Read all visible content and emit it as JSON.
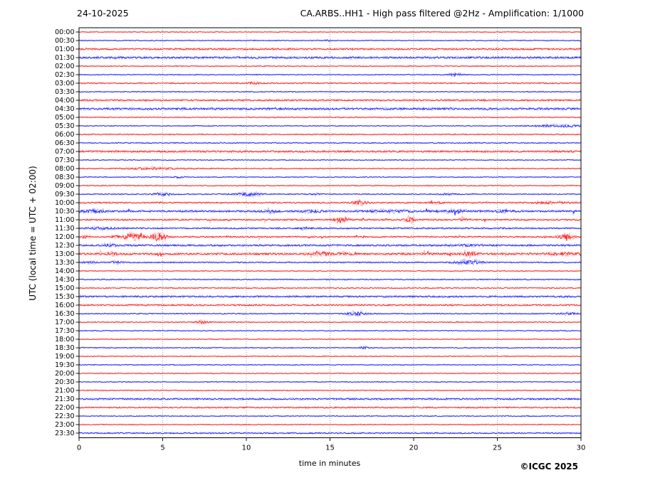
{
  "header": {
    "date": "24-10-2025",
    "title": "CA.ARBS..HH1 - High pass filtered @2Hz - Amplification: 1/1000"
  },
  "axes": {
    "xlabel": "time in minutes",
    "ylabel": "UTC (local time = UTC + 02:00)"
  },
  "footer": {
    "credit": "©ICGC 2025"
  },
  "chart_data": {
    "type": "line",
    "subtype": "helicorder-seismogram",
    "title": "CA.ARBS..HH1 - High pass filtered @2Hz - Amplification: 1/1000",
    "date_label": "24-10-2025",
    "xlabel": "time in minutes",
    "ylabel": "UTC (local time = UTC + 02:00)",
    "xlim": [
      0,
      30
    ],
    "xticks": [
      0,
      5,
      10,
      15,
      20,
      25,
      30
    ],
    "grid": "vertical dashed gridlines at 5-minute intervals",
    "legend": "none",
    "colors": {
      "trace_red": "#ff0000",
      "trace_red_soft": "#ffb6b6",
      "trace_blue": "#0000ff",
      "trace_blue_soft": "#b6b6ff",
      "axis": "#000000",
      "grid": "#8c8c8c"
    },
    "rows": [
      {
        "time": "00:00",
        "color": "red",
        "base": 0.45,
        "bursts": []
      },
      {
        "time": "00:30",
        "color": "blue",
        "base": 0.5,
        "bursts": [
          {
            "c": 14.9,
            "w": 0.25,
            "a": 0.8
          }
        ]
      },
      {
        "time": "01:00",
        "color": "red",
        "base": 1.05,
        "bursts": []
      },
      {
        "time": "01:30",
        "color": "blue",
        "base": 1.15,
        "bursts": []
      },
      {
        "time": "02:00",
        "color": "red",
        "base": 0.55,
        "bursts": []
      },
      {
        "time": "02:30",
        "color": "blue",
        "base": 0.5,
        "bursts": [
          {
            "c": 22.5,
            "w": 0.4,
            "a": 1.6
          }
        ]
      },
      {
        "time": "03:00",
        "color": "red",
        "base": 0.7,
        "bursts": [
          {
            "c": 10.5,
            "w": 0.35,
            "a": 1.3
          }
        ]
      },
      {
        "time": "03:30",
        "color": "blue",
        "base": 0.55,
        "bursts": []
      },
      {
        "time": "04:00",
        "color": "red",
        "base": 1.0,
        "bursts": []
      },
      {
        "time": "04:30",
        "color": "blue",
        "base": 1.25,
        "bursts": []
      },
      {
        "time": "05:00",
        "color": "red",
        "base": 0.55,
        "bursts": []
      },
      {
        "time": "05:30",
        "color": "blue",
        "base": 0.5,
        "bursts": [
          {
            "c": 28.6,
            "w": 1.6,
            "a": 1.3
          }
        ]
      },
      {
        "time": "06:00",
        "color": "red",
        "base": 0.6,
        "bursts": []
      },
      {
        "time": "06:30",
        "color": "blue",
        "base": 0.6,
        "bursts": []
      },
      {
        "time": "07:00",
        "color": "red",
        "base": 1.1,
        "bursts": []
      },
      {
        "time": "07:30",
        "color": "blue",
        "base": 0.5,
        "bursts": []
      },
      {
        "time": "08:00",
        "color": "red",
        "base": 0.6,
        "bursts": [
          {
            "c": 4.5,
            "w": 1.8,
            "a": 1.0
          }
        ]
      },
      {
        "time": "08:30",
        "color": "blue",
        "base": 0.5,
        "bursts": [
          {
            "c": 6.0,
            "w": 0.3,
            "a": 0.9
          }
        ]
      },
      {
        "time": "09:00",
        "color": "red",
        "base": 0.55,
        "bursts": []
      },
      {
        "time": "09:30",
        "color": "blue",
        "base": 0.6,
        "bursts": [
          {
            "c": 5.0,
            "w": 0.6,
            "a": 1.6
          },
          {
            "c": 10.1,
            "w": 0.7,
            "a": 2.0
          },
          {
            "c": 14.2,
            "w": 0.3,
            "a": 0.9
          },
          {
            "c": 22.0,
            "w": 0.5,
            "a": 0.8
          }
        ]
      },
      {
        "time": "10:00",
        "color": "red",
        "base": 0.8,
        "spiky": true,
        "bursts": [
          {
            "c": 16.8,
            "w": 0.45,
            "a": 2.2
          },
          {
            "c": 21.3,
            "w": 0.5,
            "a": 0.9
          },
          {
            "c": 28.3,
            "w": 1.2,
            "a": 0.9
          }
        ]
      },
      {
        "time": "10:30",
        "color": "blue",
        "base": 1.1,
        "spiky": true,
        "bursts": [
          {
            "c": 0.8,
            "w": 0.9,
            "a": 1.4
          },
          {
            "c": 11.5,
            "w": 0.5,
            "a": 1.0
          },
          {
            "c": 13.8,
            "w": 0.6,
            "a": 1.2
          },
          {
            "c": 18.5,
            "w": 1.4,
            "a": 1.0
          },
          {
            "c": 22.3,
            "w": 1.1,
            "a": 1.0
          },
          {
            "c": 25.4,
            "w": 0.5,
            "a": 1.2
          }
        ]
      },
      {
        "time": "11:00",
        "color": "red",
        "base": 0.9,
        "spiky": true,
        "bursts": [
          {
            "c": 15.5,
            "w": 0.3,
            "a": 2.6
          },
          {
            "c": 15.95,
            "w": 0.2,
            "a": 2.0
          },
          {
            "c": 19.8,
            "w": 0.3,
            "a": 3.0
          },
          {
            "c": 23.0,
            "w": 0.3,
            "a": 1.0
          }
        ]
      },
      {
        "time": "11:30",
        "color": "blue",
        "base": 0.85,
        "bursts": [
          {
            "c": 1.5,
            "w": 0.9,
            "a": 1.0
          },
          {
            "c": 13.5,
            "w": 0.4,
            "a": 1.0
          }
        ]
      },
      {
        "time": "12:00",
        "color": "red",
        "base": 0.85,
        "spiky": true,
        "bursts": [
          {
            "c": 0.4,
            "w": 0.2,
            "a": 1.5
          },
          {
            "c": 2.2,
            "w": 0.25,
            "a": 1.2
          },
          {
            "c": 3.2,
            "w": 0.55,
            "a": 4.2
          },
          {
            "c": 4.7,
            "w": 0.5,
            "a": 4.6
          },
          {
            "c": 29.1,
            "w": 0.5,
            "a": 2.8
          }
        ]
      },
      {
        "time": "12:30",
        "color": "blue",
        "base": 1.05,
        "bursts": [
          {
            "c": 1.8,
            "w": 0.4,
            "a": 1.3
          },
          {
            "c": 23.0,
            "w": 0.8,
            "a": 0.9
          }
        ]
      },
      {
        "time": "13:00",
        "color": "red",
        "base": 1.25,
        "spiky": true,
        "bursts": [
          {
            "c": 2.0,
            "w": 0.3,
            "a": 1.5
          },
          {
            "c": 14.5,
            "w": 0.6,
            "a": 1.6
          },
          {
            "c": 15.8,
            "w": 0.3,
            "a": 1.5
          },
          {
            "c": 23.4,
            "w": 0.4,
            "a": 1.8
          },
          {
            "c": 29.0,
            "w": 0.9,
            "a": 1.1
          }
        ]
      },
      {
        "time": "13:30",
        "color": "blue",
        "base": 0.7,
        "bursts": [
          {
            "c": 0.5,
            "w": 0.5,
            "a": 1.0
          },
          {
            "c": 2.2,
            "w": 0.35,
            "a": 1.5
          },
          {
            "c": 23.3,
            "w": 0.8,
            "a": 2.2
          }
        ]
      },
      {
        "time": "14:00",
        "color": "red",
        "base": 0.5,
        "bursts": []
      },
      {
        "time": "14:30",
        "color": "blue",
        "base": 0.6,
        "bursts": []
      },
      {
        "time": "15:00",
        "color": "red",
        "base": 0.65,
        "bursts": []
      },
      {
        "time": "15:30",
        "color": "blue",
        "base": 1.0,
        "bursts": []
      },
      {
        "time": "16:00",
        "color": "red",
        "base": 0.9,
        "bursts": []
      },
      {
        "time": "16:30",
        "color": "blue",
        "base": 0.6,
        "bursts": [
          {
            "c": 16.6,
            "w": 0.6,
            "a": 2.0
          },
          {
            "c": 29.3,
            "w": 0.5,
            "a": 1.1
          }
        ]
      },
      {
        "time": "17:00",
        "color": "red",
        "base": 0.6,
        "bursts": [
          {
            "c": 7.3,
            "w": 0.35,
            "a": 1.7
          }
        ]
      },
      {
        "time": "17:30",
        "color": "blue",
        "base": 0.5,
        "bursts": []
      },
      {
        "time": "18:00",
        "color": "red",
        "base": 0.5,
        "bursts": []
      },
      {
        "time": "18:30",
        "color": "blue",
        "base": 0.55,
        "bursts": [
          {
            "c": 17.0,
            "w": 0.25,
            "a": 1.3
          }
        ]
      },
      {
        "time": "19:00",
        "color": "red",
        "base": 0.5,
        "bursts": []
      },
      {
        "time": "19:30",
        "color": "blue",
        "base": 0.5,
        "bursts": []
      },
      {
        "time": "20:00",
        "color": "red",
        "base": 0.5,
        "bursts": []
      },
      {
        "time": "20:30",
        "color": "blue",
        "base": 0.5,
        "bursts": []
      },
      {
        "time": "21:00",
        "color": "red",
        "base": 0.5,
        "bursts": []
      },
      {
        "time": "21:30",
        "color": "blue",
        "base": 1.0,
        "bursts": []
      },
      {
        "time": "22:00",
        "color": "red",
        "base": 0.8,
        "bursts": []
      },
      {
        "time": "22:30",
        "color": "blue",
        "base": 0.5,
        "bursts": []
      },
      {
        "time": "23:00",
        "color": "red",
        "base": 0.5,
        "bursts": []
      },
      {
        "time": "23:30",
        "color": "blue",
        "base": 0.75,
        "bursts": []
      }
    ]
  }
}
